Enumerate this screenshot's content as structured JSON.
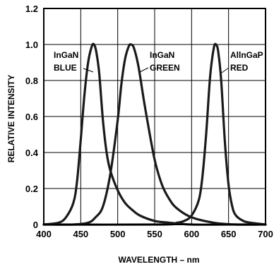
{
  "chart_data": {
    "type": "line",
    "title": "",
    "xlabel": "WAVELENGTH – nm",
    "ylabel": "RELATIVE INTENSITY",
    "xlim": [
      400,
      700
    ],
    "ylim": [
      0,
      1.2
    ],
    "x_ticks": [
      "400",
      "450",
      "500",
      "550",
      "600",
      "650",
      "700"
    ],
    "y_ticks": [
      "0",
      "0.2",
      "0.4",
      "0.6",
      "0.8",
      "1.0",
      "1.2"
    ],
    "grid": true,
    "legend": "none",
    "series": [
      {
        "name": "InGaN BLUE",
        "label_lines": [
          "InGaN",
          "BLUE"
        ],
        "color": "#1a1a1a",
        "x": [
          400,
          420,
          430,
          440,
          445,
          450,
          455,
          460,
          465,
          468,
          471,
          475,
          480,
          485,
          490,
          500,
          510,
          520,
          530,
          550,
          570,
          600,
          650,
          700
        ],
        "y": [
          0.0,
          0.01,
          0.04,
          0.12,
          0.24,
          0.47,
          0.72,
          0.9,
          0.99,
          1.0,
          0.96,
          0.84,
          0.58,
          0.4,
          0.3,
          0.19,
          0.12,
          0.08,
          0.05,
          0.02,
          0.01,
          0.0,
          0.0,
          0.0
        ]
      },
      {
        "name": "InGaN GREEN",
        "label_lines": [
          "InGaN",
          "GREEN"
        ],
        "color": "#1a1a1a",
        "x": [
          400,
          440,
          460,
          470,
          480,
          490,
          500,
          505,
          510,
          515,
          518,
          522,
          528,
          535,
          540,
          550,
          560,
          570,
          580,
          600,
          630,
          660,
          700
        ],
        "y": [
          0.0,
          0.0,
          0.01,
          0.04,
          0.1,
          0.28,
          0.58,
          0.78,
          0.92,
          0.99,
          1.0,
          0.98,
          0.88,
          0.7,
          0.58,
          0.36,
          0.22,
          0.14,
          0.09,
          0.04,
          0.01,
          0.0,
          0.0
        ]
      },
      {
        "name": "AllnGaP RED",
        "label_lines": [
          "AllnGaP",
          "RED"
        ],
        "color": "#1a1a1a",
        "x": [
          400,
          560,
          580,
          590,
          600,
          610,
          615,
          620,
          625,
          630,
          633,
          636,
          640,
          645,
          650,
          655,
          660,
          670,
          680,
          700
        ],
        "y": [
          0.0,
          0.0,
          0.01,
          0.02,
          0.05,
          0.14,
          0.28,
          0.52,
          0.82,
          0.98,
          1.0,
          0.96,
          0.8,
          0.46,
          0.22,
          0.1,
          0.05,
          0.02,
          0.01,
          0.0
        ]
      }
    ]
  }
}
